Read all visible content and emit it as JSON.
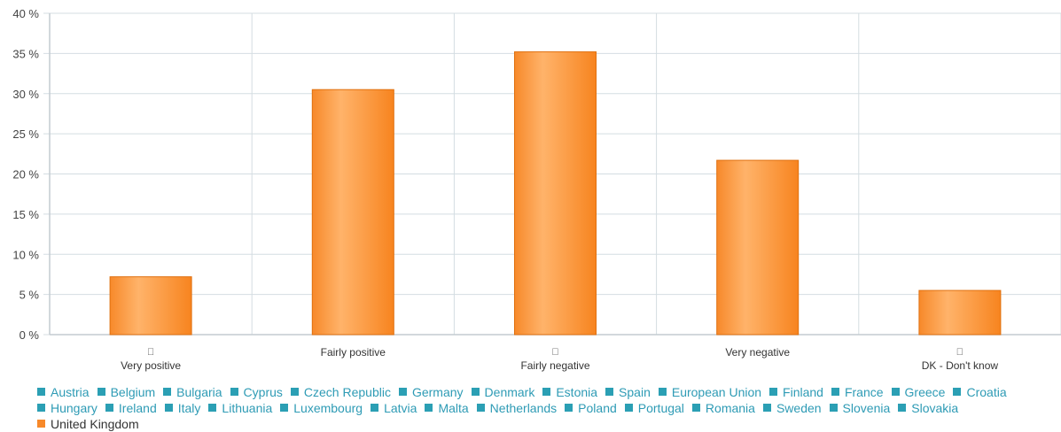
{
  "chart_data": {
    "type": "bar",
    "categories": [
      "Very positive",
      "Fairly positive",
      "Fairly negative",
      "Very negative",
      "DK - Don't know"
    ],
    "category_glyphs": [
      "",
      "",
      "",
      "",
      ""
    ],
    "series": [
      {
        "name": "United Kingdom",
        "values": [
          7.2,
          30.5,
          35.2,
          21.7,
          5.5
        ]
      }
    ],
    "ylim": [
      0,
      40
    ],
    "yticks": [
      0,
      5,
      10,
      15,
      20,
      25,
      30,
      35,
      40
    ],
    "ytick_labels": [
      "0 %",
      "5 %",
      "10 %",
      "15 %",
      "20 %",
      "25 %",
      "30 %",
      "35 %",
      "40 %"
    ],
    "grid": true,
    "legend_placement": "bottom",
    "colors": {
      "bar": "#f7892a",
      "bar_light": "#ffb36a",
      "grid": "#d4dde2",
      "legend_text": "#2e9bb5",
      "legend_swatch": "#2b9fb4",
      "selected_swatch": "#f7892a"
    }
  },
  "legend": {
    "items": [
      {
        "label": "Austria",
        "selected": false
      },
      {
        "label": "Belgium",
        "selected": false
      },
      {
        "label": "Bulgaria",
        "selected": false
      },
      {
        "label": "Cyprus",
        "selected": false
      },
      {
        "label": "Czech Republic",
        "selected": false
      },
      {
        "label": "Germany",
        "selected": false
      },
      {
        "label": "Denmark",
        "selected": false
      },
      {
        "label": "Estonia",
        "selected": false
      },
      {
        "label": "Spain",
        "selected": false
      },
      {
        "label": "European Union",
        "selected": false
      },
      {
        "label": "Finland",
        "selected": false
      },
      {
        "label": "France",
        "selected": false
      },
      {
        "label": "Greece",
        "selected": false
      },
      {
        "label": "Croatia",
        "selected": false
      },
      {
        "label": "Hungary",
        "selected": false
      },
      {
        "label": "Ireland",
        "selected": false
      },
      {
        "label": "Italy",
        "selected": false
      },
      {
        "label": "Lithuania",
        "selected": false
      },
      {
        "label": "Luxembourg",
        "selected": false
      },
      {
        "label": "Latvia",
        "selected": false
      },
      {
        "label": "Malta",
        "selected": false
      },
      {
        "label": "Netherlands",
        "selected": false
      },
      {
        "label": "Poland",
        "selected": false
      },
      {
        "label": "Portugal",
        "selected": false
      },
      {
        "label": "Romania",
        "selected": false
      },
      {
        "label": "Sweden",
        "selected": false
      },
      {
        "label": "Slovenia",
        "selected": false
      },
      {
        "label": "Slovakia",
        "selected": false
      },
      {
        "label": "United Kingdom",
        "selected": true
      }
    ]
  }
}
